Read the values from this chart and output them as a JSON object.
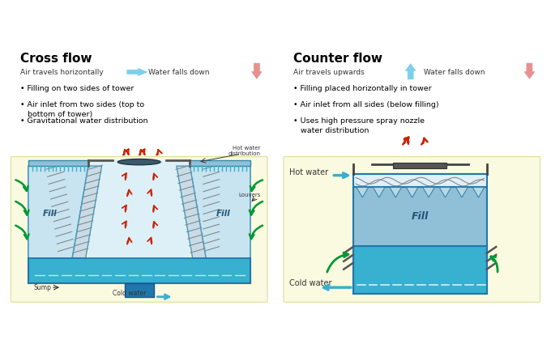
{
  "fig_width": 6.8,
  "fig_height": 4.3,
  "bg_color": "#ffffff",
  "left_title": "Cross flow",
  "right_title": "Counter flow",
  "left_bullets": [
    "• Filling on two sides of tower",
    "• Air inlet from two sides (top to\n   bottom of tower)",
    "• Gravitational water distribution"
  ],
  "right_bullets": [
    "• Filling placed horizontally in tower",
    "• Air inlet from all sides (below filling)",
    "• Uses high pressure spray nozzle\n   water distribution"
  ],
  "air_horiz_text": "Air travels horizontally",
  "air_up_text": "Air travels upwards",
  "water_down_text": "Water falls down",
  "blue_arrow_color": "#7dcfee",
  "pink_arrow_color": "#e89090",
  "fill_light": "#b8d8ea",
  "fill_mid": "#90c0d8",
  "water_blue": "#38b0d0",
  "diagram_bg": "#fafae0",
  "green_color": "#00994422",
  "red_color": "#cc2200",
  "dark": "#333333",
  "gray": "#666666",
  "light_blue_fill": "#c8e4f0",
  "spray_color": "#90c8e0",
  "louver_color": "#aaaaaa"
}
